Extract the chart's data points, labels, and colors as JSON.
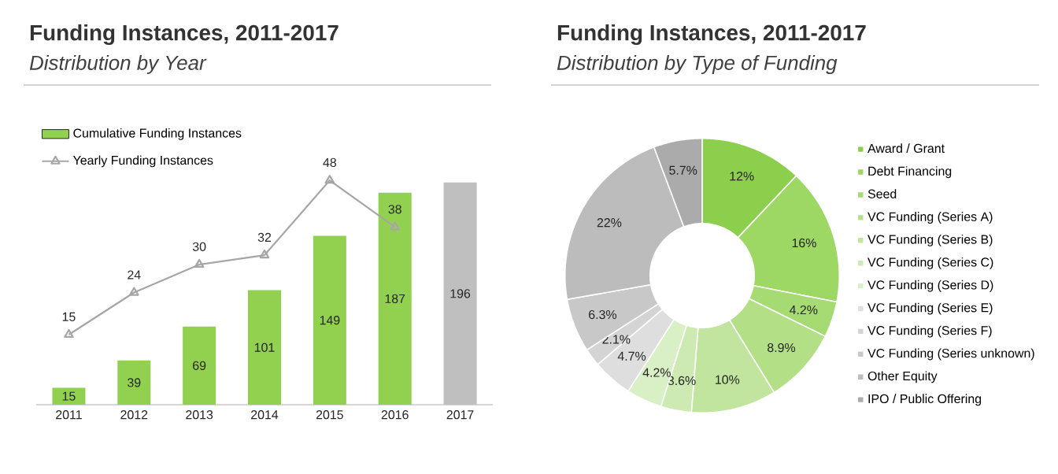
{
  "chart_data": [
    {
      "type": "bar",
      "title": "Funding Instances, 2011-2017",
      "subtitle": "Distribution by Year",
      "categories": [
        "2011",
        "2012",
        "2013",
        "2014",
        "2015",
        "2016",
        "2017"
      ],
      "series": [
        {
          "name": "Cumulative Funding Instances",
          "type": "bar",
          "colors": [
            "#92d050",
            "#92d050",
            "#92d050",
            "#92d050",
            "#92d050",
            "#92d050",
            "#bfbfbf"
          ],
          "values": [
            15,
            39,
            69,
            101,
            149,
            187,
            196
          ]
        },
        {
          "name": "Yearly Funding Instances",
          "type": "line",
          "axis": "y2",
          "color": "#a6a6a6",
          "marker": "triangle",
          "values": [
            15,
            24,
            30,
            32,
            48,
            38,
            null
          ]
        }
      ],
      "data_labels": true,
      "legend": "top left"
    },
    {
      "type": "donut",
      "title": "Funding Instances, 2011-2017",
      "subtitle": "Distribution by Type of Funding",
      "categories": [
        "Award / Grant",
        "Debt Financing",
        "Seed",
        "VC Funding (Series A)",
        "VC Funding (Series B)",
        "VC Funding (Series C)",
        "VC Funding (Series D)",
        "VC Funding (Series E)",
        "VC Funding (Series F)",
        "VC Funding (Series unknown)",
        "Other Equity",
        "IPO / Public Offering"
      ],
      "values": [
        12,
        16,
        4.2,
        8.9,
        10,
        3.6,
        4.2,
        4.7,
        2.1,
        6.3,
        22,
        5.7
      ],
      "value_labels": [
        "12%",
        "16%",
        "4.2%",
        "8.9%",
        "10%",
        "3.6%",
        "4.2%",
        "4.7%",
        "2.1%",
        "6.3%",
        "22%",
        "5.7%"
      ],
      "colors": [
        "#8ccf4d",
        "#9dd764",
        "#a6da72",
        "#b3df87",
        "#c1e59e",
        "#cdeab2",
        "#d9efc6",
        "#dedede",
        "#d4d4d4",
        "#c8c8c8",
        "#bcbcbc",
        "#ababab"
      ],
      "legend": "right"
    }
  ]
}
